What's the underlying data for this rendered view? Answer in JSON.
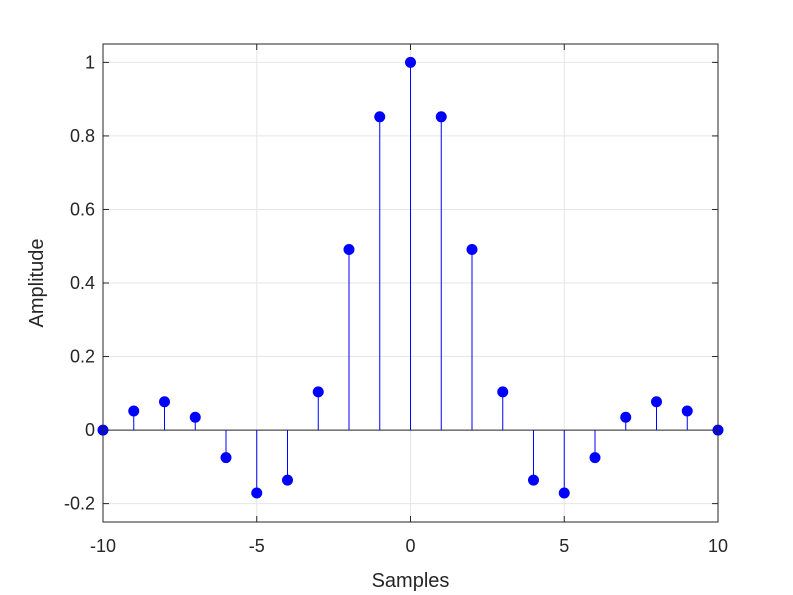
{
  "chart_data": {
    "type": "stem",
    "title": "",
    "xlabel": "Samples",
    "ylabel": "Amplitude",
    "xlim": [
      -10,
      10
    ],
    "ylim": [
      -0.25,
      1.05
    ],
    "xticks": [
      -10,
      -5,
      0,
      5,
      10
    ],
    "yticks": [
      -0.2,
      0,
      0.2,
      0.4,
      0.6,
      0.8,
      1
    ],
    "xtick_labels": [
      "-10",
      "-5",
      "0",
      "5",
      "10"
    ],
    "ytick_labels": [
      "-0.2",
      "0",
      "0.2",
      "0.4",
      "0.6",
      "0.8",
      "1"
    ],
    "grid": true,
    "baseline": 0,
    "color": "#0000ff",
    "x": [
      -10,
      -9,
      -8,
      -7,
      -6,
      -5,
      -4,
      -3,
      -2,
      -1,
      0,
      1,
      2,
      3,
      4,
      5,
      6,
      7,
      8,
      9,
      10
    ],
    "y": [
      0.0,
      0.052,
      0.077,
      0.035,
      -0.075,
      -0.171,
      -0.136,
      0.104,
      0.491,
      0.852,
      1.0,
      0.852,
      0.491,
      0.104,
      -0.136,
      -0.171,
      -0.075,
      0.035,
      0.077,
      0.052,
      0.0
    ]
  }
}
